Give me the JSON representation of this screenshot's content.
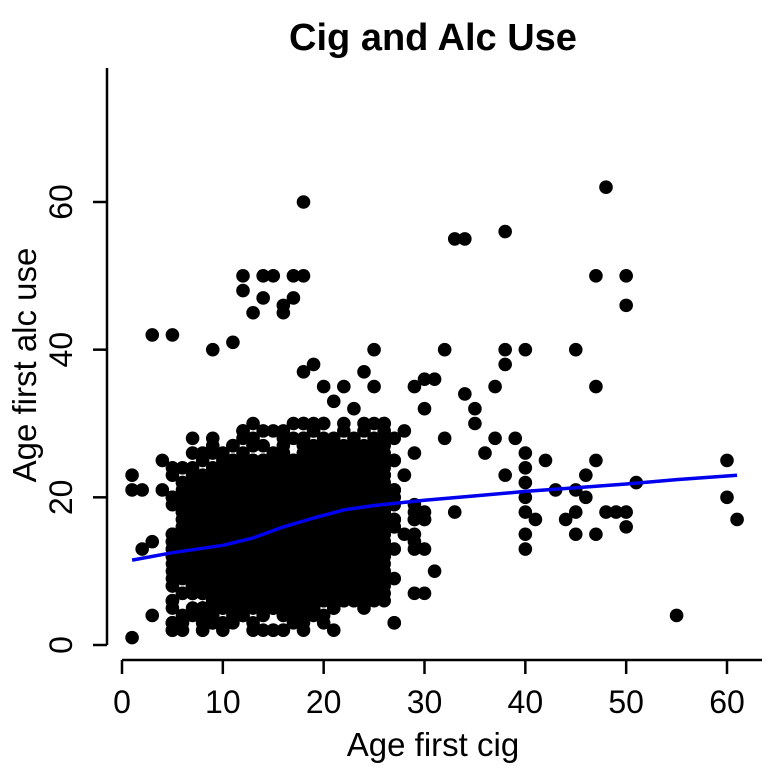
{
  "chart_data": {
    "type": "scatter",
    "title": "Cig and Alc Use",
    "xlabel": "Age first cig",
    "ylabel": "Age first alc use",
    "xlim": [
      0,
      62
    ],
    "ylim": [
      0,
      78
    ],
    "xticks": [
      0,
      10,
      20,
      30,
      40,
      50,
      60
    ],
    "yticks": [
      0,
      20,
      40,
      60
    ],
    "grid": false,
    "legend": "none",
    "point_color": "#000000",
    "smooth_color": "#0000ee",
    "dense_cluster": {
      "x_range": [
        5,
        30
      ],
      "y_range": [
        2,
        30
      ],
      "note_count_estimate": "thousands"
    },
    "points": [
      [
        1,
        1
      ],
      [
        1,
        21
      ],
      [
        1,
        23
      ],
      [
        2,
        13
      ],
      [
        2,
        21
      ],
      [
        3,
        42
      ],
      [
        3,
        4
      ],
      [
        3,
        14
      ],
      [
        4,
        21
      ],
      [
        4,
        25
      ],
      [
        5,
        42
      ],
      [
        5,
        2
      ],
      [
        5,
        23
      ],
      [
        9,
        40
      ],
      [
        10,
        2
      ],
      [
        11,
        41
      ],
      [
        12,
        50
      ],
      [
        12,
        48
      ],
      [
        13,
        45
      ],
      [
        14,
        47
      ],
      [
        14,
        50
      ],
      [
        15,
        50
      ],
      [
        16,
        45
      ],
      [
        16,
        46
      ],
      [
        17,
        47
      ],
      [
        17,
        50
      ],
      [
        18,
        50
      ],
      [
        18,
        60
      ],
      [
        18,
        37
      ],
      [
        19,
        38
      ],
      [
        20,
        35
      ],
      [
        21,
        33
      ],
      [
        22,
        35
      ],
      [
        23,
        32
      ],
      [
        24,
        37
      ],
      [
        25,
        40
      ],
      [
        25,
        35
      ],
      [
        26,
        30
      ],
      [
        27,
        28
      ],
      [
        28,
        29
      ],
      [
        29,
        35
      ],
      [
        30,
        36
      ],
      [
        30,
        32
      ],
      [
        31,
        36
      ],
      [
        31,
        10
      ],
      [
        32,
        40
      ],
      [
        32,
        28
      ],
      [
        33,
        55
      ],
      [
        33,
        18
      ],
      [
        34,
        55
      ],
      [
        34,
        34
      ],
      [
        35,
        32
      ],
      [
        35,
        30
      ],
      [
        36,
        26
      ],
      [
        37,
        28
      ],
      [
        37,
        35
      ],
      [
        38,
        56
      ],
      [
        38,
        40
      ],
      [
        38,
        38
      ],
      [
        38,
        23
      ],
      [
        39,
        28
      ],
      [
        40,
        40
      ],
      [
        40,
        26
      ],
      [
        40,
        24
      ],
      [
        40,
        22
      ],
      [
        40,
        20
      ],
      [
        40,
        18
      ],
      [
        40,
        15
      ],
      [
        40,
        13
      ],
      [
        41,
        17
      ],
      [
        42,
        25
      ],
      [
        43,
        21
      ],
      [
        44,
        17
      ],
      [
        45,
        40
      ],
      [
        45,
        21
      ],
      [
        45,
        18
      ],
      [
        45,
        15
      ],
      [
        46,
        23
      ],
      [
        46,
        20
      ],
      [
        47,
        50
      ],
      [
        47,
        35
      ],
      [
        47,
        25
      ],
      [
        47,
        15
      ],
      [
        48,
        62
      ],
      [
        48,
        18
      ],
      [
        49,
        18
      ],
      [
        50,
        50
      ],
      [
        50,
        46
      ],
      [
        50,
        18
      ],
      [
        50,
        16
      ],
      [
        51,
        22
      ],
      [
        55,
        4
      ],
      [
        60,
        25
      ],
      [
        60,
        20
      ],
      [
        61,
        17
      ]
    ],
    "smooth_line": {
      "x": [
        1,
        5,
        10,
        13,
        16,
        19,
        22,
        25,
        30,
        35,
        40,
        45,
        50,
        55,
        61
      ],
      "y": [
        11.5,
        12.5,
        13.5,
        14.5,
        16,
        17.2,
        18.3,
        18.9,
        19.6,
        20.2,
        20.8,
        21.3,
        21.8,
        22.4,
        23
      ]
    }
  }
}
